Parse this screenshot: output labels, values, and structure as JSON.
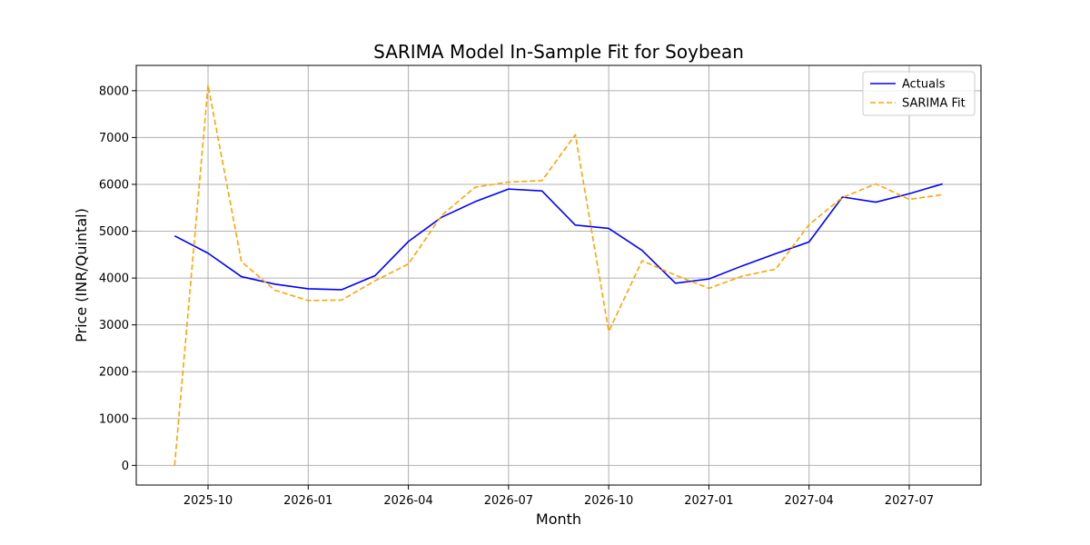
{
  "chart_data": {
    "type": "line",
    "title": "SARIMA Model In-Sample Fit for Soybean",
    "xlabel": "Month",
    "ylabel": "Price (INR/Quintal)",
    "x": [
      "2025-09",
      "2025-10",
      "2025-11",
      "2025-12",
      "2026-01",
      "2026-02",
      "2026-03",
      "2026-04",
      "2026-05",
      "2026-06",
      "2026-07",
      "2026-08",
      "2026-09",
      "2026-10",
      "2026-11",
      "2026-12",
      "2027-01",
      "2027-02",
      "2027-03",
      "2027-04",
      "2027-05",
      "2027-06",
      "2027-07",
      "2027-08"
    ],
    "x_ticks": [
      "2025-10",
      "2026-01",
      "2026-04",
      "2026-07",
      "2026-10",
      "2027-01",
      "2027-04",
      "2027-07"
    ],
    "y_ticks": [
      0,
      1000,
      2000,
      3000,
      4000,
      5000,
      6000,
      7000,
      8000
    ],
    "ylim": [
      -420,
      8540
    ],
    "grid": true,
    "legend_position": "top-right",
    "series": [
      {
        "name": "Actuals",
        "color": "#0000ff",
        "style": "solid",
        "values": [
          4900,
          4530,
          4030,
          3870,
          3770,
          3750,
          4050,
          4780,
          5300,
          5630,
          5900,
          5860,
          5130,
          5060,
          4590,
          3890,
          3980,
          4260,
          4520,
          4770,
          5730,
          5620,
          5800,
          6010
        ]
      },
      {
        "name": "SARIMA Fit",
        "color": "#ffa500",
        "style": "dashed",
        "values": [
          0,
          8120,
          4350,
          3740,
          3520,
          3530,
          3940,
          4300,
          5340,
          5940,
          6050,
          6080,
          7060,
          2860,
          4370,
          4060,
          3780,
          4040,
          4190,
          5140,
          5720,
          6010,
          5680,
          5780
        ]
      }
    ]
  }
}
